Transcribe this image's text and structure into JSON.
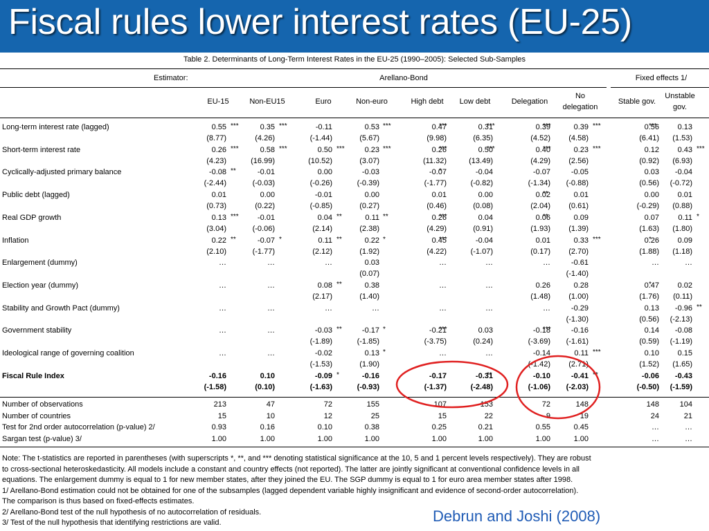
{
  "title": "Fiscal rules lower interest rates (EU-25)",
  "table_caption": "Table 2. Determinants of Long-Term Interest Rates in the EU-25 (1990–2005): Selected Sub-Samples",
  "estimator_label": "Estimator:",
  "group_headers": [
    "Arellano-Bond",
    "Fixed effects 1/"
  ],
  "columns": [
    "EU-15",
    "Non-EU15",
    "Euro",
    "Non-euro",
    "High debt",
    "Low debt",
    "Delegation",
    "No delegation",
    "Stable gov.",
    "Unstable gov."
  ],
  "rows": [
    {
      "label": "Long-term interest rate (lagged)",
      "bold": false,
      "values": [
        "0.55",
        "0.35",
        "-0.11",
        "0.53",
        "0.47",
        "0.31",
        "0.39",
        "0.39",
        "0.56",
        "0.13"
      ],
      "stars": [
        "***",
        "***",
        "",
        "***",
        "***",
        "***",
        "***",
        "***",
        "***",
        ""
      ],
      "tstats": [
        "(8.77)",
        "(4.26)",
        "(-1.44)",
        "(5.67)",
        "(9.98)",
        "(6.35)",
        "(4.52)",
        "(4.58)",
        "(6.41)",
        "(1.53)"
      ]
    },
    {
      "label": "Short-term interest rate",
      "bold": false,
      "values": [
        "0.26",
        "0.58",
        "0.50",
        "0.23",
        "0.26",
        "0.50",
        "0.40",
        "0.23",
        "0.12",
        "0.43"
      ],
      "stars": [
        "***",
        "***",
        "***",
        "***",
        "***",
        "***",
        "***",
        "***",
        "",
        "***"
      ],
      "tstats": [
        "(4.23)",
        "(16.99)",
        "(10.52)",
        "(3.07)",
        "(11.32)",
        "(13.49)",
        "(4.29)",
        "(2.56)",
        "(0.92)",
        "(6.93)"
      ]
    },
    {
      "label": "Cyclically-adjusted primary balance",
      "bold": false,
      "values": [
        "-0.08",
        "-0.01",
        "0.00",
        "-0.03",
        "-0.07",
        "-0.04",
        "-0.07",
        "-0.05",
        "0.03",
        "-0.04"
      ],
      "stars": [
        "**",
        "",
        "",
        "",
        "*",
        "",
        "",
        "",
        "",
        ""
      ],
      "tstats": [
        "(-2.44)",
        "(-0.03)",
        "(-0.26)",
        "(-0.39)",
        "(-1.77)",
        "(-0.82)",
        "(-1.34)",
        "(-0.88)",
        "(0.56)",
        "(-0.72)"
      ]
    },
    {
      "label": "Public debt (lagged)",
      "bold": false,
      "values": [
        "0.01",
        "0.00",
        "-0.01",
        "0.00",
        "0.01",
        "0.00",
        "0.02",
        "0.01",
        "0.00",
        "0.01"
      ],
      "stars": [
        "",
        "",
        "",
        "",
        "",
        "",
        "**",
        "",
        "",
        ""
      ],
      "tstats": [
        "(0.73)",
        "(0.22)",
        "(-0.85)",
        "(0.27)",
        "(0.46)",
        "(0.08)",
        "(2.04)",
        "(0.61)",
        "(-0.29)",
        "(0.88)"
      ]
    },
    {
      "label": "Real GDP growth",
      "bold": false,
      "values": [
        "0.13",
        "-0.01",
        "0.04",
        "0.11",
        "0.26",
        "0.04",
        "0.06",
        "0.09",
        "0.07",
        "0.11"
      ],
      "stars": [
        "***",
        "",
        "**",
        "**",
        "***",
        "",
        "**",
        "",
        "",
        "*"
      ],
      "tstats": [
        "(3.04)",
        "(-0.06)",
        "(2.14)",
        "(2.38)",
        "(4.29)",
        "(0.91)",
        "(1.93)",
        "(1.39)",
        "(1.63)",
        "(1.80)"
      ]
    },
    {
      "label": "Inflation",
      "bold": false,
      "values": [
        "0.22",
        "-0.07",
        "0.11",
        "0.22",
        "0.45",
        "-0.04",
        "0.01",
        "0.33",
        "0.26",
        "0.09"
      ],
      "stars": [
        "**",
        "*",
        "**",
        "*",
        "***",
        "",
        "",
        "***",
        "*",
        ""
      ],
      "tstats": [
        "(2.10)",
        "(-1.77)",
        "(2.12)",
        "(1.92)",
        "(4.22)",
        "(-1.07)",
        "(0.17)",
        "(2.70)",
        "(1.88)",
        "(1.18)"
      ]
    },
    {
      "label": "Enlargement (dummy)",
      "bold": false,
      "values": [
        "…",
        "…",
        "…",
        "0.03",
        "…",
        "…",
        "…",
        "-0.61",
        "…",
        "…"
      ],
      "stars": [
        "",
        "",
        "",
        "",
        "",
        "",
        "",
        "",
        "",
        ""
      ],
      "tstats": [
        "",
        "",
        "",
        "(0.07)",
        "",
        "",
        "",
        "(-1.40)",
        "",
        ""
      ]
    },
    {
      "label": "Election year (dummy)",
      "bold": false,
      "values": [
        "…",
        "…",
        "0.08",
        "0.38",
        "…",
        "…",
        "0.26",
        "0.28",
        "0.47",
        "0.02"
      ],
      "stars": [
        "",
        "",
        "**",
        "",
        "",
        "",
        "",
        "",
        "*",
        ""
      ],
      "tstats": [
        "",
        "",
        "(2.17)",
        "(1.40)",
        "",
        "",
        "(1.48)",
        "(1.00)",
        "(1.76)",
        "(0.11)"
      ]
    },
    {
      "label": "Stability and Growth Pact (dummy)",
      "bold": false,
      "values": [
        "…",
        "…",
        "…",
        "…",
        "…",
        "…",
        "…",
        "-0.29",
        "0.13",
        "-0.96"
      ],
      "stars": [
        "",
        "",
        "",
        "",
        "",
        "",
        "",
        "",
        "",
        "**"
      ],
      "tstats": [
        "",
        "",
        "",
        "",
        "",
        "",
        "",
        "(-1.30)",
        "(0.56)",
        "(-2.13)"
      ]
    },
    {
      "label": "Government stability",
      "bold": false,
      "values": [
        "…",
        "…",
        "-0.03",
        "-0.17",
        "-0.21",
        "0.03",
        "-0.18",
        "-0.16",
        "0.14",
        "-0.08"
      ],
      "stars": [
        "",
        "",
        "**",
        "*",
        "***",
        "",
        "***",
        "",
        "",
        ""
      ],
      "tstats": [
        "",
        "",
        "(-1.89)",
        "(-1.85)",
        "(-3.75)",
        "(0.24)",
        "(-3.69)",
        "(-1.61)",
        "(0.59)",
        "(-1.19)"
      ]
    },
    {
      "label": "Ideological range of governing coalition",
      "bold": false,
      "values": [
        "…",
        "…",
        "-0.02",
        "0.13",
        "…",
        "…",
        "-0.14",
        "0.11",
        "0.10",
        "0.15"
      ],
      "stars": [
        "",
        "",
        "",
        "*",
        "",
        "",
        "",
        "***",
        "",
        ""
      ],
      "tstats": [
        "",
        "",
        "(-1.53)",
        "(1.90)",
        "",
        "",
        "(-1.42)",
        "(2.71)",
        "(1.52)",
        "(1.65)"
      ]
    },
    {
      "label": "Fiscal Rule Index",
      "bold": true,
      "values": [
        "-0.16",
        "0.10",
        "-0.09",
        "-0.16",
        "-0.17",
        "-0.31",
        "-0.10",
        "-0.41",
        "-0.06",
        "-0.43"
      ],
      "stars": [
        "",
        "",
        "*",
        "",
        "",
        "**",
        "",
        "**",
        "",
        ""
      ],
      "tstats": [
        "(-1.58)",
        "(0.10)",
        "(-1.63)",
        "(-0.93)",
        "(-1.37)",
        "(-2.48)",
        "(-1.06)",
        "(-2.03)",
        "(-0.50)",
        "(-1.59)"
      ]
    }
  ],
  "stats_rows": [
    {
      "label": "Number of observations",
      "values": [
        "213",
        "47",
        "72",
        "155",
        "107",
        "153",
        "72",
        "148",
        "148",
        "104"
      ]
    },
    {
      "label": "Number of countries",
      "values": [
        "15",
        "10",
        "12",
        "25",
        "15",
        "22",
        "9",
        "19",
        "24",
        "21"
      ]
    },
    {
      "label": "Test for 2nd order autocorrelation (p-value)  2/",
      "values": [
        "0.93",
        "0.16",
        "0.10",
        "0.38",
        "0.25",
        "0.21",
        "0.55",
        "0.45",
        "…",
        "…"
      ]
    },
    {
      "label": "Sargan test (p-value)   3/",
      "values": [
        "1.00",
        "1.00",
        "1.00",
        "1.00",
        "1.00",
        "1.00",
        "1.00",
        "1.00",
        "…",
        "…"
      ]
    }
  ],
  "notes": [
    "Note: The t-statistics are reported in parentheses (with superscripts  *, **, and *** denoting statistical significance at the 10, 5 and 1 percent levels respectively).  They are robust",
    "to cross-sectional heteroskedasticity. All models include a constant and country effects (not reported). The latter are jointly significant at conventional confidence levels in all",
    "equations. The enlargement dummy is equal to 1 for new member states, after they joined the EU. The SGP dummy is equal to 1 for euro area member states after 1998.",
    "1/ Arellano-Bond estimation could not be obtained for one of the subsamples (lagged dependent variable highly insignificant and evidence of second-order autocorrelation).",
    "The comparison is thus based on fixed-effects estimates.",
    "2/ Arellano-Bond test of the null hypothesis of no autocorrelation of residuals.",
    "3/ Test of the null hypothesis that identifying restrictions are valid."
  ],
  "citation": "Debrun and Joshi (2008)",
  "highlight_color": "#e02020",
  "chart_data": {
    "type": "table",
    "title": "Table 2. Determinants of Long-Term Interest Rates in the EU-25 (1990–2005): Selected Sub-Samples",
    "columns": [
      "EU-15",
      "Non-EU15",
      "Euro",
      "Non-euro",
      "High debt",
      "Low debt",
      "Delegation",
      "No delegation",
      "Stable gov.",
      "Unstable gov."
    ],
    "highlighted_row": "Fiscal Rule Index",
    "highlighted_columns": [
      "High debt",
      "Low debt",
      "Delegation",
      "No delegation"
    ]
  }
}
